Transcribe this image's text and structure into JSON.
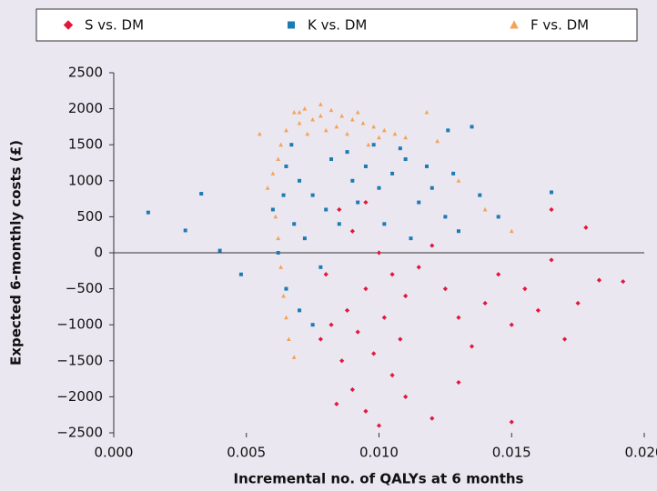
{
  "chart_data": {
    "type": "scatter",
    "x_label": "Incremental no. of QALYs at 6 months",
    "y_label": "Expected 6-monthly costs (£)",
    "xlim": [
      0,
      0.02
    ],
    "xticks": [
      {
        "value": 0,
        "label": "0.000"
      },
      {
        "value": 0.005,
        "label": "0.005"
      },
      {
        "value": 0.01,
        "label": "0.010"
      },
      {
        "value": 0.015,
        "label": "0.015"
      },
      {
        "value": 0.02,
        "label": "0.020"
      }
    ],
    "ylim": [
      -2500,
      2500
    ],
    "yticks": [
      {
        "value": -2500,
        "label": "−2500"
      },
      {
        "value": -2000,
        "label": "−2000"
      },
      {
        "value": -1500,
        "label": "−1500"
      },
      {
        "value": -1000,
        "label": "−1000"
      },
      {
        "value": -500,
        "label": "−500"
      },
      0,
      500,
      1000,
      1500,
      2000,
      2500
    ],
    "legend": "top",
    "series": [
      {
        "name": "S vs. DM",
        "color": "#e3173a",
        "marker": "diamond",
        "x": [
          0.0085,
          0.0095,
          0.009,
          0.01,
          0.0105,
          0.0095,
          0.0088,
          0.0092,
          0.0098,
          0.0102,
          0.011,
          0.0115,
          0.012,
          0.0125,
          0.013,
          0.0135,
          0.014,
          0.0145,
          0.015,
          0.0155,
          0.016,
          0.0165,
          0.017,
          0.0175,
          0.0178,
          0.0183,
          0.0192,
          0.008,
          0.0082,
          0.0086,
          0.009,
          0.0095,
          0.01,
          0.011,
          0.012,
          0.015,
          0.013,
          0.0078,
          0.0084,
          0.0105,
          0.0165,
          0.0108
        ],
        "values": [
          600,
          700,
          300,
          0,
          -300,
          -500,
          -800,
          -1100,
          -1400,
          -900,
          -600,
          -200,
          100,
          -500,
          -900,
          -1300,
          -700,
          -300,
          -1000,
          -500,
          -800,
          -100,
          -1200,
          -700,
          350,
          -380,
          -400,
          -300,
          -1000,
          -1500,
          -1900,
          -2200,
          -2400,
          -2000,
          -2300,
          -2350,
          -1800,
          -1200,
          -2100,
          -1700,
          600,
          -1200
        ]
      },
      {
        "name": "K vs. DM",
        "color": "#1b7cb3",
        "marker": "square",
        "x": [
          0.0013,
          0.0027,
          0.0033,
          0.004,
          0.0048,
          0.0165,
          0.0135,
          0.0126,
          0.0065,
          0.007,
          0.0075,
          0.008,
          0.0085,
          0.009,
          0.0095,
          0.01,
          0.0105,
          0.011,
          0.0115,
          0.012,
          0.0125,
          0.013,
          0.0068,
          0.0072,
          0.0078,
          0.0065,
          0.007,
          0.0075,
          0.0062,
          0.0064,
          0.0088,
          0.0092,
          0.0098,
          0.0108,
          0.0118,
          0.0128,
          0.0138,
          0.0145,
          0.0082,
          0.006,
          0.0067,
          0.0112,
          0.0102
        ],
        "values": [
          560,
          310,
          820,
          30,
          -300,
          840,
          1750,
          1700,
          1200,
          1000,
          800,
          600,
          400,
          1000,
          1200,
          900,
          1100,
          1300,
          700,
          900,
          500,
          300,
          400,
          200,
          -200,
          -500,
          -800,
          -1000,
          0,
          800,
          1400,
          700,
          1500,
          1450,
          1200,
          1100,
          800,
          500,
          1300,
          600,
          1500,
          200,
          400
        ]
      },
      {
        "name": "F vs. DM",
        "color": "#f4a457",
        "marker": "triangle",
        "x": [
          0.0068,
          0.0072,
          0.0078,
          0.0082,
          0.0086,
          0.0075,
          0.007,
          0.0065,
          0.009,
          0.0094,
          0.0098,
          0.0102,
          0.0106,
          0.011,
          0.0118,
          0.0122,
          0.0063,
          0.0062,
          0.006,
          0.0058,
          0.0055,
          0.0061,
          0.0062,
          0.0063,
          0.0064,
          0.0065,
          0.0066,
          0.0068,
          0.008,
          0.0084,
          0.0073,
          0.0088,
          0.0096,
          0.013,
          0.014,
          0.015,
          0.0078,
          0.007,
          0.0092,
          0.01
        ],
        "values": [
          1950,
          2000,
          2060,
          1980,
          1900,
          1850,
          1800,
          1700,
          1850,
          1800,
          1750,
          1700,
          1650,
          1600,
          1950,
          1550,
          1500,
          1300,
          1100,
          900,
          1650,
          500,
          200,
          -200,
          -600,
          -900,
          -1200,
          -1450,
          1700,
          1750,
          1650,
          1650,
          1500,
          1000,
          600,
          300,
          1900,
          1950,
          1950,
          1600
        ]
      }
    ]
  }
}
